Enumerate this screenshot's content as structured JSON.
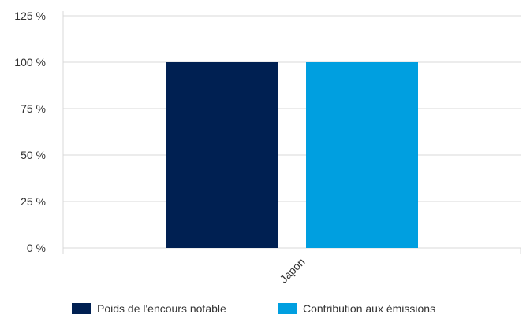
{
  "chart_data": {
    "type": "bar",
    "categories": [
      "Japon"
    ],
    "series": [
      {
        "name": "Poids de l'encours notable",
        "values": [
          100
        ],
        "color": "#002052"
      },
      {
        "name": "Contribution aux émissions",
        "values": [
          100
        ],
        "color": "#009fe0"
      }
    ],
    "yticks": [
      "0 %",
      "25 %",
      "50 %",
      "75 %",
      "100 %",
      "125 %"
    ],
    "ylim": [
      0,
      125
    ],
    "grid": true,
    "legend_position": "bottom",
    "xlabel": "",
    "ylabel": ""
  }
}
